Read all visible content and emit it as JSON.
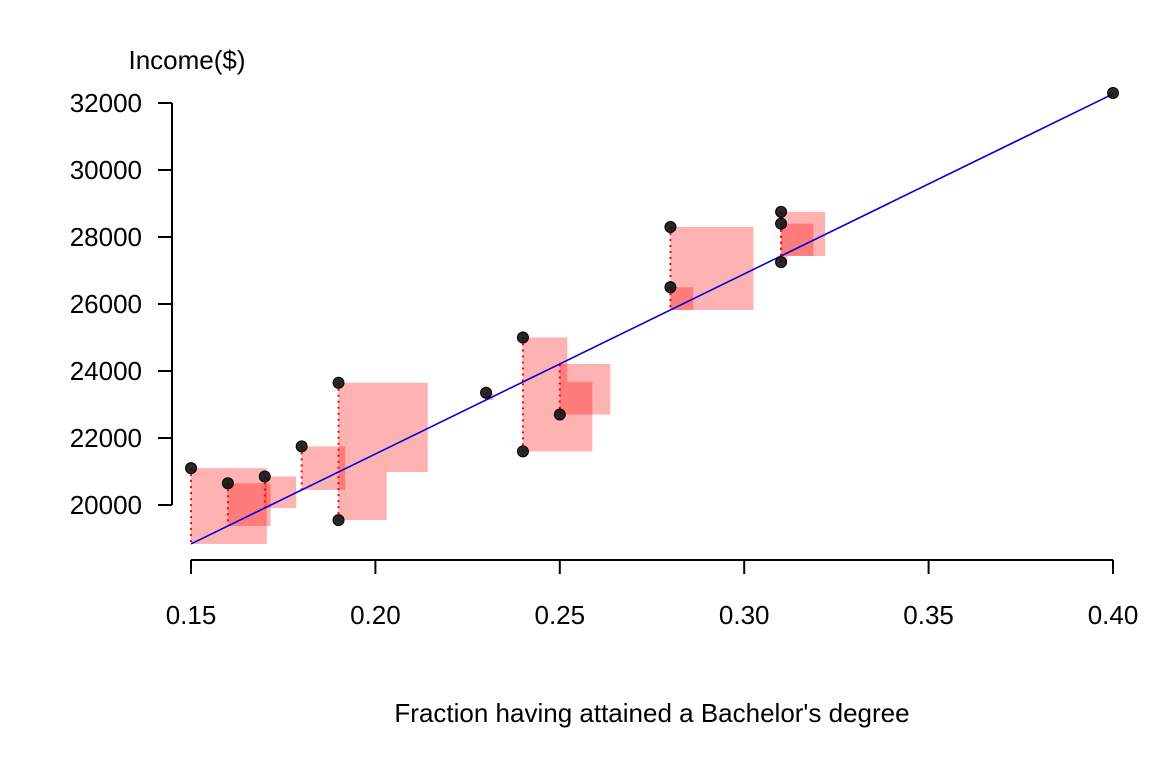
{
  "chart_data": {
    "type": "scatter",
    "title": "",
    "xlabel": "Fraction having attained a Bachelor's degree",
    "ylabel": "Income($)",
    "xlim": [
      0.15,
      0.4
    ],
    "ylim": [
      20000,
      32000
    ],
    "x_ticks": [
      "0.15",
      "0.20",
      "0.25",
      "0.30",
      "0.35",
      "0.40"
    ],
    "y_ticks": [
      "20000",
      "22000",
      "24000",
      "26000",
      "28000",
      "30000",
      "32000"
    ],
    "grid": false,
    "regression_line": {
      "intercept": 10777,
      "slope": 53732
    },
    "x": [
      0.15,
      0.16,
      0.17,
      0.18,
      0.19,
      0.19,
      0.23,
      0.24,
      0.24,
      0.25,
      0.28,
      0.28,
      0.31,
      0.31,
      0.31,
      0.4
    ],
    "y": [
      21100,
      20650,
      20850,
      21750,
      19550,
      23650,
      23350,
      25000,
      21600,
      22700,
      28300,
      26500,
      28750,
      28400,
      27250,
      32300
    ],
    "colors": {
      "points": "#111111",
      "fit_line": "#0000dd",
      "residual": "#ff0000"
    }
  }
}
